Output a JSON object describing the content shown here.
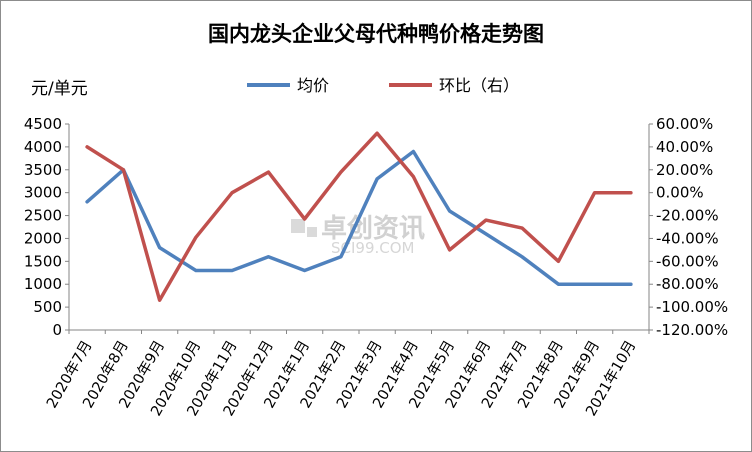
{
  "chart_data": {
    "type": "line",
    "title": "国内龙头企业父母代种鸭价格走势图",
    "ylabel": "元/单元",
    "categories": [
      "2020年7月",
      "2020年8月",
      "2020年9月",
      "2020年10月",
      "2020年11月",
      "2020年12月",
      "2021年1月",
      "2021年2月",
      "2021年3月",
      "2021年4月",
      "2021年5月",
      "2021年6月",
      "2021年7月",
      "2021年8月",
      "2021年9月",
      "2021年10月"
    ],
    "series": [
      {
        "name": "均价",
        "axis": "left",
        "color": "#4f81bd",
        "values": [
          2800,
          3500,
          1800,
          1300,
          1300,
          1600,
          1300,
          1600,
          3300,
          3900,
          2600,
          2100,
          1600,
          1000,
          1000,
          1000
        ]
      },
      {
        "name": "环比（右）",
        "axis": "right",
        "color": "#c0504d",
        "values": [
          0.4,
          0.2,
          -0.94,
          -0.39,
          0.0,
          0.18,
          -0.23,
          0.18,
          0.52,
          0.14,
          -0.5,
          -0.24,
          -0.31,
          -0.6,
          0.0,
          0.0
        ]
      }
    ],
    "ylim": [
      0,
      4500
    ],
    "yticks": [
      "0",
      "500",
      "1000",
      "1500",
      "2000",
      "2500",
      "3000",
      "3500",
      "4000",
      "4500"
    ],
    "y2lim": [
      -1.2,
      0.6
    ],
    "y2ticks": [
      "60.00%",
      "40.00%",
      "20.00%",
      "0.00%",
      "-20.00%",
      "-40.00%",
      "-60.00%",
      "-80.00%",
      "-100.00%",
      "-120.00%"
    ],
    "grid": false,
    "legend_position": "top-center",
    "watermark": {
      "text": "卓创资讯",
      "sub": "SCI99.COM"
    }
  }
}
